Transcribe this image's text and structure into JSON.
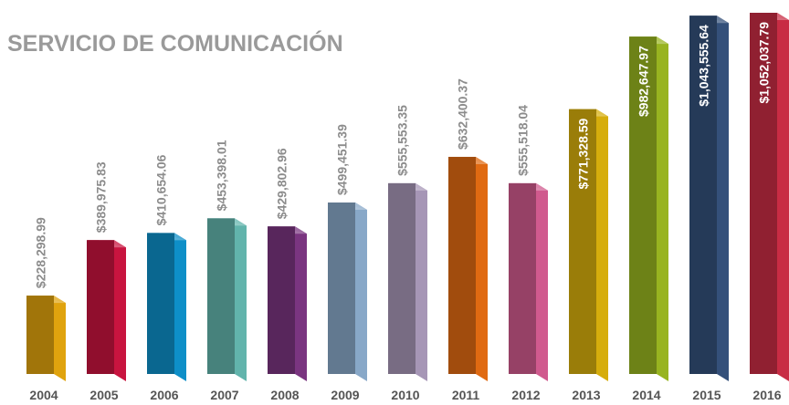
{
  "chart_data": {
    "type": "bar3d",
    "title": "SERVICIO DE COMUNICACIÓN",
    "categories": [
      "2004",
      "2005",
      "2006",
      "2007",
      "2008",
      "2009",
      "2010",
      "2011",
      "2012",
      "2013",
      "2014",
      "2015",
      "2016"
    ],
    "values": [
      228298.99,
      389975.83,
      410654.06,
      453398.01,
      429802.96,
      499451.39,
      555553.35,
      632400.37,
      555518.04,
      771328.59,
      982647.97,
      1043555.64,
      1052037.79
    ],
    "value_labels": [
      "$228,298.99",
      "$389,975.83",
      "$410,654.06",
      "$453,398.01",
      "$429,802.96",
      "$499,451.39",
      "$555,553.35",
      "$632,400.37",
      "$555,518.04",
      "$771,328.59",
      "$982,647.97",
      "$1,043,555.64",
      "$1,052,037.79"
    ],
    "colors": [
      "#e0a30e",
      "#c8143f",
      "#0e8fc8",
      "#62b4ac",
      "#7a3580",
      "#88a8c8",
      "#a696b6",
      "#e06a12",
      "#d05a8e",
      "#d6ad0c",
      "#98b420",
      "#34507a",
      "#c82c44"
    ]
  }
}
